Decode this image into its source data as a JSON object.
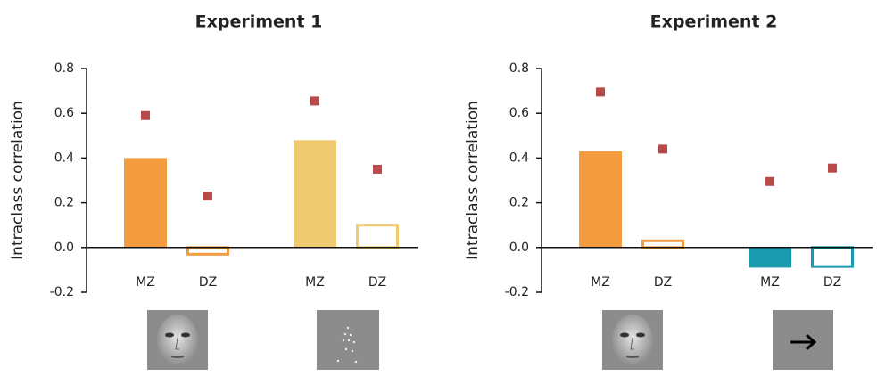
{
  "chart_data": [
    {
      "type": "bar",
      "title": "Experiment 1",
      "ylabel": "Intraclass correlation",
      "categories": [
        "MZ",
        "DZ",
        "MZ",
        "DZ"
      ],
      "values": [
        0.4,
        -0.03,
        0.48,
        0.1
      ],
      "colors": [
        "#f39c40",
        "#f39c40",
        "#efca6e",
        "#efca6e"
      ],
      "outline": [
        false,
        true,
        false,
        true
      ],
      "marker_values": [
        0.59,
        0.23,
        0.655,
        0.35
      ],
      "marker_color": "#b84a4a",
      "ylim": [
        -0.2,
        0.8
      ],
      "yticks": [
        -0.2,
        {
          "value": 0,
          "label": "0.0"
        },
        0.2,
        0.4,
        0.6,
        0.8
      ]
    },
    {
      "type": "bar",
      "title": "Experiment 2",
      "ylabel": "Intraclass correlation",
      "categories": [
        "MZ",
        "DZ",
        "MZ",
        "DZ"
      ],
      "values": [
        0.43,
        0.03,
        -0.09,
        -0.085
      ],
      "colors": [
        "#f39c40",
        "#f39c40",
        "#1a9aad",
        "#1a9aad"
      ],
      "outline": [
        false,
        true,
        false,
        true
      ],
      "marker_values": [
        0.695,
        0.44,
        0.295,
        0.355
      ],
      "marker_color": "#b84a4a",
      "ylim": [
        -0.2,
        0.8
      ],
      "yticks": [
        -0.2,
        {
          "value": 0,
          "label": "0.0"
        },
        0.2,
        0.4,
        0.6,
        0.8
      ]
    }
  ]
}
